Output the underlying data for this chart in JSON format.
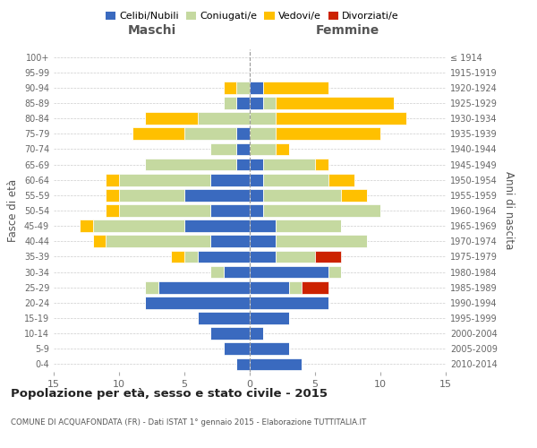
{
  "age_groups": [
    "0-4",
    "5-9",
    "10-14",
    "15-19",
    "20-24",
    "25-29",
    "30-34",
    "35-39",
    "40-44",
    "45-49",
    "50-54",
    "55-59",
    "60-64",
    "65-69",
    "70-74",
    "75-79",
    "80-84",
    "85-89",
    "90-94",
    "95-99",
    "100+"
  ],
  "birth_years": [
    "2010-2014",
    "2005-2009",
    "2000-2004",
    "1995-1999",
    "1990-1994",
    "1985-1989",
    "1980-1984",
    "1975-1979",
    "1970-1974",
    "1965-1969",
    "1960-1964",
    "1955-1959",
    "1950-1954",
    "1945-1949",
    "1940-1944",
    "1935-1939",
    "1930-1934",
    "1925-1929",
    "1920-1924",
    "1915-1919",
    "≤ 1914"
  ],
  "colors": {
    "celibi": "#3a6abf",
    "coniugati": "#c5d9a0",
    "vedovi": "#ffc000",
    "divorziati": "#cc2200"
  },
  "maschi": {
    "celibi": [
      1,
      2,
      3,
      4,
      8,
      7,
      2,
      4,
      3,
      5,
      3,
      5,
      3,
      1,
      1,
      1,
      0,
      1,
      0,
      0,
      0
    ],
    "coniugati": [
      0,
      0,
      0,
      0,
      0,
      1,
      1,
      1,
      8,
      7,
      7,
      5,
      7,
      7,
      2,
      4,
      4,
      1,
      1,
      0,
      0
    ],
    "vedovi": [
      0,
      0,
      0,
      0,
      0,
      0,
      0,
      1,
      1,
      1,
      1,
      1,
      1,
      0,
      0,
      4,
      4,
      0,
      1,
      0,
      0
    ],
    "divorziati": [
      0,
      0,
      0,
      0,
      0,
      0,
      0,
      0,
      0,
      0,
      0,
      0,
      0,
      0,
      0,
      0,
      0,
      0,
      0,
      0,
      0
    ]
  },
  "femmine": {
    "celibi": [
      4,
      3,
      1,
      3,
      6,
      3,
      6,
      2,
      2,
      2,
      1,
      1,
      1,
      1,
      0,
      0,
      0,
      1,
      1,
      0,
      0
    ],
    "coniugati": [
      0,
      0,
      0,
      0,
      0,
      1,
      1,
      3,
      7,
      5,
      9,
      6,
      5,
      4,
      2,
      2,
      2,
      1,
      0,
      0,
      0
    ],
    "vedovi": [
      0,
      0,
      0,
      0,
      0,
      0,
      0,
      0,
      0,
      0,
      0,
      2,
      2,
      1,
      1,
      8,
      10,
      9,
      5,
      0,
      0
    ],
    "divorziati": [
      0,
      0,
      0,
      0,
      0,
      2,
      0,
      2,
      0,
      0,
      0,
      0,
      0,
      0,
      0,
      0,
      0,
      0,
      0,
      0,
      0
    ]
  },
  "xlim": 15,
  "title": "Popolazione per età, sesso e stato civile - 2015",
  "subtitle": "COMUNE DI ACQUAFONDATA (FR) - Dati ISTAT 1° gennaio 2015 - Elaborazione TUTTITALIA.IT",
  "ylabel_left": "Fasce di età",
  "ylabel_right": "Anni di nascita",
  "xlabel_maschi": "Maschi",
  "xlabel_femmine": "Femmine",
  "legend_labels": [
    "Celibi/Nubili",
    "Coniugati/e",
    "Vedovi/e",
    "Divorziati/e"
  ],
  "background_color": "#ffffff",
  "grid_color": "#cccccc"
}
